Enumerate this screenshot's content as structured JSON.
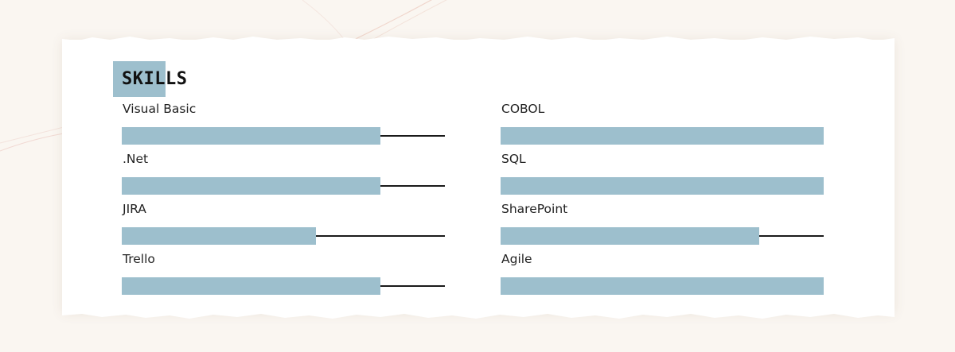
{
  "section": {
    "title": "SKILLS"
  },
  "colors": {
    "accent": "#9dbfcd",
    "track_line": "#1a1a1a",
    "text": "#222222"
  },
  "skills": [
    {
      "name": "Visual Basic",
      "level": 0.8
    },
    {
      "name": "COBOL",
      "level": 1.0
    },
    {
      "name": ".Net",
      "level": 0.8
    },
    {
      "name": "SQL",
      "level": 1.0
    },
    {
      "name": "JIRA",
      "level": 0.6
    },
    {
      "name": "SharePoint",
      "level": 0.8
    },
    {
      "name": "Trello",
      "level": 0.8
    },
    {
      "name": "Agile",
      "level": 1.0
    }
  ]
}
